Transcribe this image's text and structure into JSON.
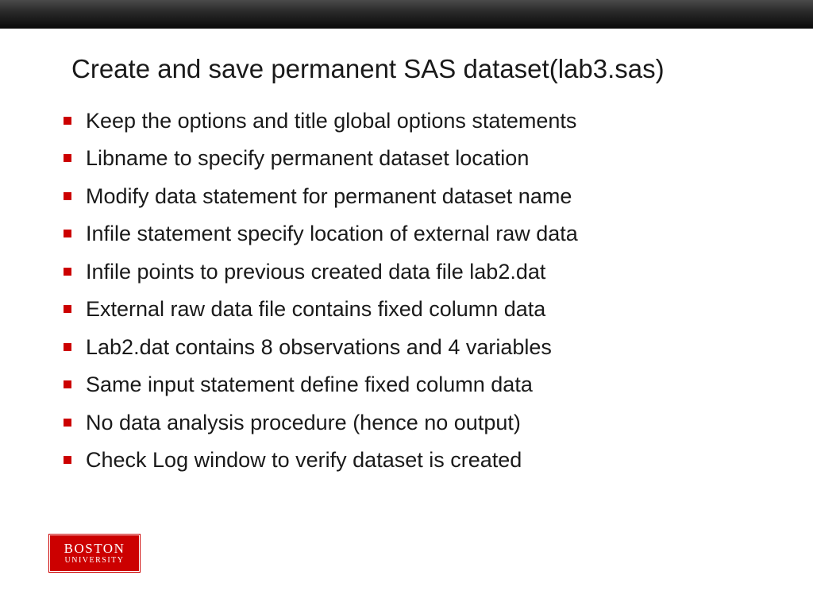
{
  "slide": {
    "title": "Create and save permanent SAS dataset(lab3.sas)",
    "bullets": [
      "Keep the options and title global options statements",
      "Libname to specify permanent dataset location",
      "Modify data statement for permanent dataset name",
      "Infile statement specify location of external raw data",
      "Infile points to previous created data file lab2.dat",
      "External raw data file contains fixed column data",
      "Lab2.dat contains 8 observations and 4 variables",
      "Same input statement define fixed column data",
      "No data analysis procedure (hence no output)",
      "Check Log window to verify dataset is created"
    ],
    "bullet_color": "#cc0000",
    "title_fontsize": 33,
    "bullet_fontsize": 27,
    "text_color": "#1a1a1a",
    "background_color": "#ffffff",
    "topbar_gradient": [
      "#4a4a4a",
      "#0a0a0a"
    ]
  },
  "logo": {
    "line1": "BOSTON",
    "line2": "UNIVERSITY",
    "background": "#cc0000",
    "text_color": "#ffffff"
  }
}
